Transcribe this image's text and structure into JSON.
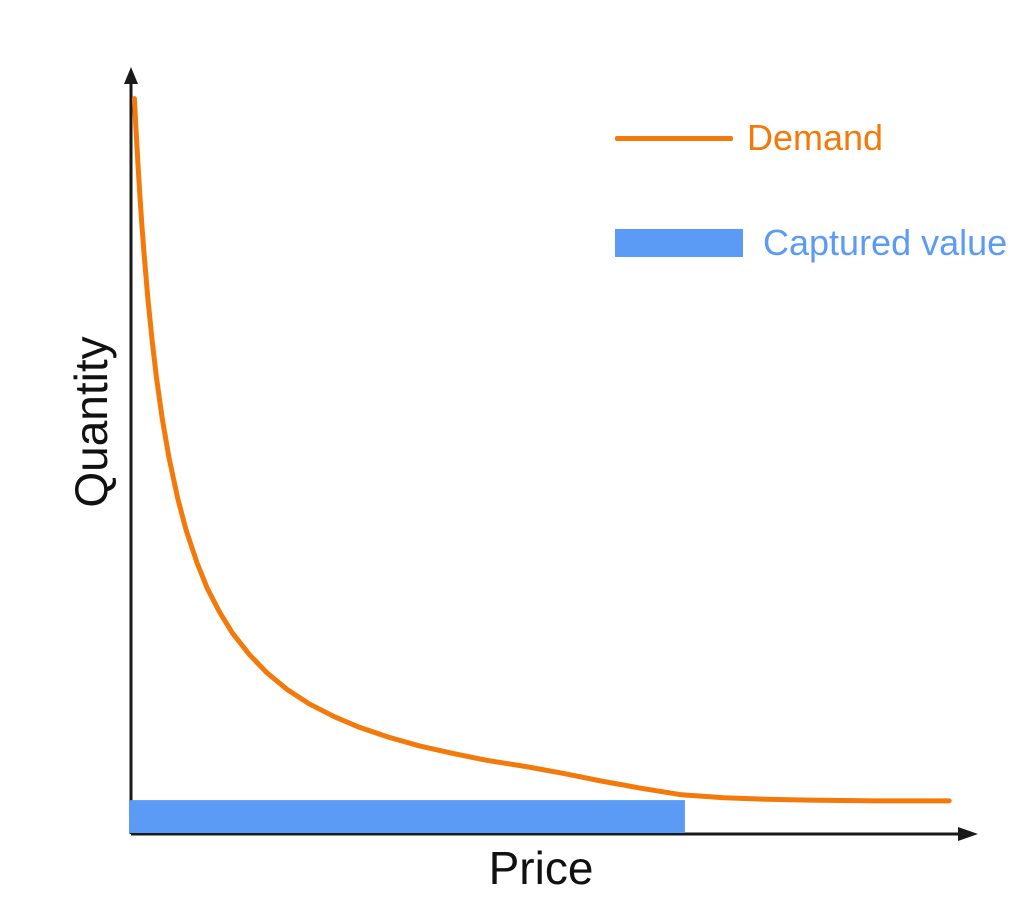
{
  "figure": {
    "background": "#ffffff",
    "x_axis_label": "Price",
    "y_axis_label": "Quantity"
  },
  "colors": {
    "demand_orange": "#F4790B",
    "captured_blue": "#5B9BF5",
    "axis_black": "#1a1a1a",
    "label_black": "#111111"
  },
  "legend": {
    "position": "upper-right",
    "items": [
      {
        "label": "Demand",
        "swatch": "line",
        "color": "#F4790B"
      },
      {
        "label": "Captured value",
        "swatch": "rect",
        "color": "#5B9BF5"
      }
    ]
  },
  "chart_data": {
    "type": "line",
    "title": "",
    "xlabel": "Price",
    "ylabel": "Quantity",
    "axes": {
      "ticks": "none",
      "xlim": [
        0,
        1
      ],
      "ylim": [
        0,
        1
      ],
      "units": "normalized (axes are unlabeled, conceptual diagram)",
      "grid": false,
      "arrowheads": true
    },
    "legend_position": "upper-right",
    "series": [
      {
        "name": "Demand",
        "color": "#F4790B",
        "shape": "rectangular-hyperbola demand curve, Q ~ 0.04/(P+0.038)+0.008, flattening to Q~0.042 at high P",
        "x": [
          0.004,
          0.006,
          0.008,
          0.01,
          0.013,
          0.016,
          0.02,
          0.025,
          0.03,
          0.037,
          0.045,
          0.055,
          0.065,
          0.078,
          0.09,
          0.105,
          0.12,
          0.14,
          0.16,
          0.185,
          0.21,
          0.24,
          0.27,
          0.305,
          0.34,
          0.38,
          0.42,
          0.465,
          0.51,
          0.555,
          0.6,
          0.65,
          0.7,
          0.75,
          0.8,
          0.88,
          0.966
        ],
        "y": [
          0.96,
          0.917,
          0.878,
          0.841,
          0.792,
          0.749,
          0.698,
          0.643,
          0.596,
          0.541,
          0.49,
          0.438,
          0.396,
          0.353,
          0.32,
          0.288,
          0.261,
          0.233,
          0.21,
          0.187,
          0.169,
          0.152,
          0.138,
          0.125,
          0.114,
          0.104,
          0.095,
          0.087,
          0.078,
          0.068,
          0.059,
          0.05,
          0.046,
          0.044,
          0.043,
          0.042,
          0.042
        ]
      }
    ],
    "captured_value_bar": {
      "name": "Captured value",
      "color": "#5B9BF5",
      "x_range": [
        0,
        0.654
      ],
      "y_range": [
        0,
        0.043
      ]
    }
  }
}
